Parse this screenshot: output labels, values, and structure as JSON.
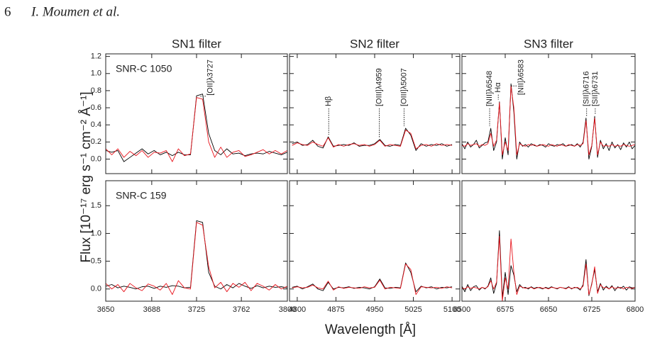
{
  "header": {
    "page": "6",
    "authors": "I. Moumen et al."
  },
  "figure": {
    "ylabel": "Flux [10⁻¹⁷ erg s⁻¹ cm⁻² Å⁻¹]",
    "xlabel": "Wavelength [Å]"
  },
  "chart_data": [
    {
      "type": "line",
      "title": "SN1 filter",
      "object": "SNR-C 1050",
      "x": [
        3650,
        3655,
        3660,
        3665,
        3670,
        3675,
        3680,
        3685,
        3690,
        3695,
        3700,
        3705,
        3710,
        3715,
        3720,
        3725,
        3730,
        3735,
        3740,
        3745,
        3750,
        3755,
        3760,
        3765,
        3770,
        3775,
        3780,
        3785,
        3790,
        3795,
        3800
      ],
      "series": [
        {
          "color": "#000000",
          "values": [
            0.1,
            0.08,
            0.1,
            -0.03,
            0.02,
            0.07,
            0.12,
            0.06,
            0.1,
            0.05,
            0.08,
            0.04,
            0.08,
            0.05,
            0.05,
            0.74,
            0.76,
            0.3,
            0.1,
            0.05,
            0.12,
            0.06,
            0.07,
            0.04,
            0.06,
            0.07,
            0.06,
            0.09,
            0.07,
            0.05,
            0.08
          ]
        },
        {
          "color": "#e8141c",
          "values": [
            0.12,
            0.05,
            0.12,
            0.02,
            0.09,
            0.04,
            0.1,
            0.02,
            0.08,
            0.07,
            0.1,
            -0.03,
            0.12,
            0.04,
            0.06,
            0.72,
            0.7,
            0.2,
            0.02,
            0.14,
            0.02,
            0.08,
            0.1,
            0.03,
            0.05,
            0.08,
            0.11,
            0.06,
            0.1,
            0.06,
            0.1
          ]
        }
      ],
      "annotations": [
        {
          "text": "[OII]λ3727",
          "x": 3727
        }
      ],
      "xlim": [
        3650,
        3800
      ],
      "xticks": [
        3650,
        3688,
        3725,
        3762,
        3800
      ],
      "ylim": [
        -0.17,
        1.23
      ],
      "yticks": [
        {
          "value": 0,
          "label": "0.0"
        },
        0.2,
        0.4,
        0.6,
        0.8,
        {
          "value": 1,
          "label": "1.0"
        },
        1.2
      ]
    },
    {
      "type": "line",
      "title": "SN2 filter",
      "x": [
        4790,
        4800,
        4810,
        4820,
        4830,
        4840,
        4850,
        4860,
        4870,
        4880,
        4890,
        4900,
        4910,
        4920,
        4930,
        4940,
        4950,
        4960,
        4970,
        4980,
        4990,
        5000,
        5010,
        5020,
        5030,
        5040,
        5050,
        5060,
        5070,
        5080,
        5090,
        5100
      ],
      "series": [
        {
          "color": "#000000",
          "values": [
            0.18,
            0.2,
            0.16,
            0.17,
            0.22,
            0.15,
            0.13,
            0.26,
            0.15,
            0.16,
            0.17,
            0.16,
            0.19,
            0.15,
            0.16,
            0.16,
            0.18,
            0.23,
            0.16,
            0.15,
            0.17,
            0.16,
            0.36,
            0.28,
            0.1,
            0.18,
            0.15,
            0.17,
            0.16,
            0.18,
            0.15,
            0.17
          ]
        },
        {
          "color": "#e8141c",
          "values": [
            0.16,
            0.19,
            0.17,
            0.16,
            0.2,
            0.17,
            0.15,
            0.25,
            0.14,
            0.17,
            0.15,
            0.17,
            0.18,
            0.16,
            0.17,
            0.15,
            0.17,
            0.22,
            0.15,
            0.17,
            0.16,
            0.15,
            0.34,
            0.3,
            0.12,
            0.16,
            0.17,
            0.15,
            0.18,
            0.16,
            0.17,
            0.16
          ]
        }
      ],
      "annotations": [
        {
          "text": "Hβ",
          "x": 4861
        },
        {
          "text": "[OIII]λ4959",
          "x": 4959
        },
        {
          "text": "[OIII]λ5007",
          "x": 5007
        }
      ],
      "xlim": [
        4785,
        5115
      ],
      "xticks": [
        4800,
        4875,
        4950,
        5025,
        5100
      ],
      "ylim": [
        -0.17,
        1.23
      ],
      "yticks": [
        {
          "value": 0,
          "label": "0.0"
        },
        0.2,
        0.4,
        0.6,
        0.8,
        {
          "value": 1,
          "label": "1.0"
        },
        1.2
      ]
    },
    {
      "type": "line",
      "title": "SN3 filter",
      "x": [
        6500,
        6505,
        6510,
        6515,
        6520,
        6525,
        6530,
        6535,
        6540,
        6545,
        6550,
        6555,
        6560,
        6565,
        6570,
        6575,
        6580,
        6585,
        6590,
        6595,
        6600,
        6605,
        6610,
        6615,
        6620,
        6625,
        6630,
        6635,
        6640,
        6645,
        6650,
        6655,
        6660,
        6665,
        6670,
        6675,
        6680,
        6685,
        6690,
        6695,
        6700,
        6705,
        6710,
        6715,
        6720,
        6725,
        6730,
        6735,
        6740,
        6745,
        6750,
        6755,
        6760,
        6765,
        6770,
        6775,
        6780,
        6785,
        6790,
        6795,
        6800
      ],
      "series": [
        {
          "color": "#000000",
          "values": [
            0.18,
            0.12,
            0.2,
            0.14,
            0.17,
            0.22,
            0.13,
            0.16,
            0.19,
            0.2,
            0.36,
            0.1,
            0.2,
            0.67,
            0.0,
            0.25,
            0.05,
            0.88,
            0.55,
            0.0,
            0.2,
            0.15,
            0.17,
            0.14,
            0.18,
            0.16,
            0.15,
            0.17,
            0.16,
            0.14,
            0.18,
            0.16,
            0.15,
            0.17,
            0.16,
            0.18,
            0.15,
            0.16,
            0.17,
            0.15,
            0.18,
            0.14,
            0.2,
            0.48,
            0.0,
            0.15,
            0.5,
            0.02,
            0.22,
            0.12,
            0.18,
            0.1,
            0.2,
            0.13,
            0.17,
            0.11,
            0.19,
            0.14,
            0.2,
            0.12,
            0.16
          ]
        },
        {
          "color": "#e8141c",
          "values": [
            0.16,
            0.15,
            0.18,
            0.16,
            0.17,
            0.18,
            0.15,
            0.17,
            0.16,
            0.18,
            0.3,
            0.15,
            0.22,
            0.66,
            0.05,
            0.2,
            0.1,
            0.85,
            0.6,
            0.05,
            0.18,
            0.16,
            0.15,
            0.17,
            0.16,
            0.17,
            0.15,
            0.16,
            0.17,
            0.16,
            0.15,
            0.17,
            0.16,
            0.15,
            0.17,
            0.16,
            0.15,
            0.17,
            0.16,
            0.15,
            0.17,
            0.16,
            0.18,
            0.45,
            0.05,
            0.16,
            0.48,
            0.05,
            0.2,
            0.15,
            0.16,
            0.15,
            0.17,
            0.15,
            0.16,
            0.15,
            0.17,
            0.16,
            0.15,
            0.16,
            0.17
          ]
        }
      ],
      "annotations": [
        {
          "text": "[NII]λ6548",
          "x": 6548
        },
        {
          "text": "Hα",
          "x": 6563
        },
        {
          "text": "[NII]λ6583",
          "x": 6583
        },
        {
          "text": "[SII]λ6716",
          "x": 6716
        },
        {
          "text": "[SII]λ6731",
          "x": 6731
        }
      ],
      "xlim": [
        6500,
        6800
      ],
      "xticks": [
        6500,
        6575,
        6650,
        6725,
        6800
      ],
      "ylim": [
        -0.17,
        1.23
      ],
      "yticks": [
        {
          "value": 0,
          "label": "0.0"
        },
        0.2,
        0.4,
        0.6,
        0.8,
        {
          "value": 1,
          "label": "1.0"
        },
        1.2
      ]
    },
    {
      "type": "line",
      "object": "SNR-C 159",
      "x": [
        3650,
        3655,
        3660,
        3665,
        3670,
        3675,
        3680,
        3685,
        3690,
        3695,
        3700,
        3705,
        3710,
        3715,
        3720,
        3725,
        3730,
        3735,
        3740,
        3745,
        3750,
        3755,
        3760,
        3765,
        3770,
        3775,
        3780,
        3785,
        3790,
        3795,
        3800
      ],
      "series": [
        {
          "color": "#000000",
          "values": [
            0.05,
            0.08,
            0.02,
            0.05,
            0.03,
            0,
            0.04,
            0.05,
            0.01,
            0.05,
            0.03,
            0.06,
            0.05,
            0.02,
            0.03,
            1.23,
            1.2,
            0.3,
            0.05,
            0.0,
            0.08,
            0.02,
            0.1,
            0.05,
            0.01,
            0.06,
            0.02,
            0.05,
            0.03,
            0.04,
            0.02
          ]
        },
        {
          "color": "#e8141c",
          "values": [
            0.1,
            0.0,
            0.08,
            -0.05,
            0.1,
            0.02,
            -0.03,
            0.09,
            0.05,
            -0.02,
            0.1,
            -0.1,
            0.15,
            0.02,
            0.0,
            1.2,
            1.15,
            0.4,
            0.02,
            0.12,
            -0.05,
            0.1,
            0.03,
            0.12,
            -0.03,
            0.1,
            0.05,
            -0.02,
            0.08,
            0.0,
            0.05
          ]
        }
      ],
      "xlim": [
        3650,
        3800
      ],
      "xticks": [
        3650,
        3688,
        3725,
        3762,
        3800
      ],
      "ylim": [
        -0.22,
        1.95
      ],
      "yticks": [
        {
          "value": 0,
          "label": "0.0"
        },
        0.5,
        {
          "value": 1,
          "label": "1.0"
        },
        1.5
      ]
    },
    {
      "type": "line",
      "x": [
        4790,
        4800,
        4810,
        4820,
        4830,
        4840,
        4850,
        4860,
        4870,
        4880,
        4890,
        4900,
        4910,
        4920,
        4930,
        4940,
        4950,
        4960,
        4970,
        4980,
        4990,
        5000,
        5010,
        5020,
        5030,
        5040,
        5050,
        5060,
        5070,
        5080,
        5090,
        5100
      ],
      "series": [
        {
          "color": "#000000",
          "values": [
            0.03,
            0.05,
            0.0,
            0.04,
            0.09,
            0.0,
            -0.03,
            0.12,
            0.0,
            0.03,
            0.02,
            0.04,
            0.01,
            0.03,
            0.02,
            0.0,
            0.04,
            0.18,
            0.02,
            0.01,
            0.03,
            0.02,
            0.47,
            0.3,
            -0.05,
            0.05,
            0.02,
            0.04,
            0.0,
            0.03,
            0.02,
            0.04
          ]
        },
        {
          "color": "#e8141c",
          "values": [
            0.02,
            0.04,
            0.02,
            0.03,
            0.07,
            0.02,
            0.0,
            0.14,
            -0.02,
            0.04,
            0.01,
            0.03,
            0.02,
            0.01,
            0.04,
            0.02,
            0.03,
            0.16,
            0.0,
            0.03,
            0.02,
            0.01,
            0.45,
            0.35,
            -0.1,
            0.04,
            0.03,
            0.02,
            0.03,
            0.01,
            0.04,
            0.02
          ]
        }
      ],
      "xlim": [
        4785,
        5115
      ],
      "xticks": [
        4800,
        4875,
        4950,
        5025,
        5100
      ],
      "ylim": [
        -0.22,
        1.95
      ],
      "yticks": [
        {
          "value": 0,
          "label": "0.0"
        },
        0.5,
        {
          "value": 1,
          "label": "1.0"
        },
        1.5
      ]
    },
    {
      "type": "line",
      "x": [
        6500,
        6505,
        6510,
        6515,
        6520,
        6525,
        6530,
        6535,
        6540,
        6545,
        6550,
        6555,
        6560,
        6565,
        6570,
        6575,
        6580,
        6585,
        6590,
        6595,
        6600,
        6605,
        6610,
        6615,
        6620,
        6625,
        6630,
        6635,
        6640,
        6645,
        6650,
        6655,
        6660,
        6665,
        6670,
        6675,
        6680,
        6685,
        6690,
        6695,
        6700,
        6705,
        6710,
        6715,
        6720,
        6725,
        6730,
        6735,
        6740,
        6745,
        6750,
        6755,
        6760,
        6765,
        6770,
        6775,
        6780,
        6785,
        6790,
        6795,
        6800
      ],
      "series": [
        {
          "color": "#000000",
          "values": [
            0.05,
            -0.05,
            0.08,
            -0.03,
            0.04,
            0.06,
            -0.02,
            0.03,
            0.0,
            0.05,
            0.2,
            -0.08,
            0.1,
            1.05,
            -0.15,
            0.3,
            -0.1,
            0.42,
            0.25,
            -0.05,
            0.08,
            0.02,
            0.03,
            0.0,
            0.04,
            0.01,
            0.03,
            0.02,
            0.0,
            0.03,
            0.01,
            0.04,
            0.02,
            0.0,
            0.03,
            0.02,
            0.01,
            0.04,
            0.0,
            0.03,
            0.02,
            -0.02,
            0.08,
            0.53,
            -0.12,
            0.1,
            0.35,
            -0.05,
            0.1,
            -0.02,
            0.05,
            0.0,
            0.06,
            -0.03,
            0.04,
            0.01,
            0.05,
            -0.02,
            0.04,
            0.02,
            0.03
          ]
        },
        {
          "color": "#e8141c",
          "values": [
            0.02,
            0.0,
            0.04,
            0.01,
            0.03,
            0.02,
            0.0,
            0.03,
            0.01,
            0.04,
            0.15,
            0.0,
            0.12,
            0.95,
            -0.22,
            0.2,
            0.0,
            0.9,
            0.3,
            -0.1,
            0.05,
            0.03,
            0.01,
            0.02,
            0.03,
            0.0,
            0.02,
            0.03,
            0.01,
            0.02,
            0.0,
            0.03,
            0.02,
            0.01,
            0.03,
            0.02,
            0.0,
            0.03,
            0.01,
            0.02,
            0.03,
            0.0,
            0.05,
            0.45,
            -0.1,
            0.08,
            0.4,
            -0.08,
            0.08,
            0.02,
            0.03,
            0.0,
            0.04,
            0.01,
            0.02,
            0.03,
            0.0,
            0.03,
            0.02,
            0.01,
            0.03
          ]
        }
      ],
      "xlim": [
        6500,
        6800
      ],
      "xticks": [
        6500,
        6575,
        6650,
        6725,
        6800
      ],
      "ylim": [
        -0.22,
        1.95
      ],
      "yticks": [
        {
          "value": 0,
          "label": "0.0"
        },
        0.5,
        {
          "value": 1,
          "label": "1.0"
        },
        1.5
      ]
    }
  ]
}
